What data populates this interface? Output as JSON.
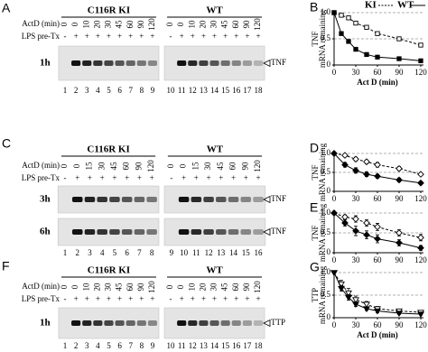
{
  "gels": [
    {
      "panel": "A",
      "groups": [
        "C116R KI",
        "WT"
      ],
      "row_labels": {
        "actd": "ActD (min)",
        "lps": "LPS pre-Tx"
      },
      "actd": [
        "0",
        "0",
        "10",
        "20",
        "30",
        "45",
        "60",
        "90",
        "120",
        "0",
        "0",
        "10",
        "20",
        "30",
        "45",
        "60",
        "90",
        "120"
      ],
      "lps": [
        "-",
        "+",
        "+",
        "+",
        "+",
        "+",
        "+",
        "+",
        "+",
        "-",
        "+",
        "+",
        "+",
        "+",
        "+",
        "+",
        "+",
        "+"
      ],
      "lanes": [
        "1",
        "2",
        "3",
        "4",
        "5",
        "6",
        "7",
        "8",
        "9",
        "10",
        "11",
        "12",
        "13",
        "14",
        "15",
        "16",
        "17",
        "18"
      ],
      "rows": [
        {
          "time": "1h",
          "band": "TNF"
        }
      ]
    },
    {
      "panel": "C",
      "groups": [
        "C116R KI",
        "WT"
      ],
      "row_labels": {
        "actd": "ActD (min)",
        "lps": "LPS pre-Tx"
      },
      "actd": [
        "0",
        "0",
        "15",
        "30",
        "45",
        "60",
        "90",
        "120",
        "0",
        "0",
        "15",
        "30",
        "45",
        "60",
        "90",
        "120"
      ],
      "lps": [
        "-",
        "+",
        "+",
        "+",
        "+",
        "+",
        "+",
        "+",
        "-",
        "+",
        "+",
        "+",
        "+",
        "+",
        "+",
        "+"
      ],
      "lanes": [
        "1",
        "2",
        "3",
        "4",
        "5",
        "6",
        "7",
        "8",
        "9",
        "10",
        "11",
        "12",
        "13",
        "14",
        "15",
        "16"
      ],
      "rows": [
        {
          "time": "3h",
          "band": "TNF"
        },
        {
          "time": "6h",
          "band": "TNF"
        }
      ]
    },
    {
      "panel": "F",
      "groups": [
        "C116R KI",
        "WT"
      ],
      "row_labels": {
        "actd": "ActD (min)",
        "lps": "LPS pre-Tx"
      },
      "actd": [
        "0",
        "0",
        "10",
        "20",
        "30",
        "45",
        "60",
        "90",
        "120",
        "0",
        "0",
        "10",
        "20",
        "30",
        "45",
        "60",
        "90",
        "120"
      ],
      "lps": [
        "-",
        "+",
        "+",
        "+",
        "+",
        "+",
        "+",
        "+",
        "+",
        "-",
        "+",
        "+",
        "+",
        "+",
        "+",
        "+",
        "+",
        "+"
      ],
      "lanes": [
        "1",
        "2",
        "3",
        "4",
        "5",
        "6",
        "7",
        "8",
        "9",
        "10",
        "11",
        "12",
        "13",
        "14",
        "15",
        "16",
        "17",
        "18"
      ],
      "rows": [
        {
          "time": "1h",
          "band": "TTP"
        }
      ]
    }
  ],
  "chart_data": [
    {
      "type": "line",
      "panel": "B",
      "ylabel": [
        "TNF",
        "mRNA remaining"
      ],
      "xlabel": "Act D (min)",
      "x": [
        0,
        10,
        20,
        30,
        45,
        60,
        90,
        120
      ],
      "xlim": [
        0,
        120
      ],
      "xticks": [
        0,
        30,
        60,
        90,
        120
      ],
      "ylim": [
        0,
        1
      ],
      "yticks": [
        0,
        0.5,
        {
          "value": 1,
          "label": "1.0"
        }
      ],
      "grid": true,
      "legend": "top",
      "series": [
        {
          "name": "KI",
          "color": "#000000",
          "dashed": true,
          "open": true,
          "marker": "square",
          "values": [
            1.0,
            0.95,
            0.9,
            0.8,
            0.72,
            0.6,
            0.5,
            0.38
          ]
        },
        {
          "name": "WT",
          "color": "#000000",
          "dashed": false,
          "open": false,
          "marker": "square",
          "values": [
            1.0,
            0.6,
            0.45,
            0.3,
            0.2,
            0.15,
            0.12,
            0.08
          ]
        }
      ]
    },
    {
      "type": "line",
      "panel": "D",
      "ylabel": [
        "TNF",
        "mRNA remaining"
      ],
      "x": [
        0,
        15,
        30,
        45,
        60,
        90,
        120
      ],
      "xlim": [
        0,
        120
      ],
      "xticks": [
        0,
        30,
        60,
        90,
        120
      ],
      "ylim": [
        0,
        1
      ],
      "yticks": [
        0,
        0.5,
        {
          "value": 1,
          "label": "1.0"
        }
      ],
      "grid": true,
      "series": [
        {
          "color": "#000000",
          "dashed": true,
          "open": true,
          "marker": "diamond",
          "values": [
            1.0,
            0.95,
            0.85,
            0.78,
            0.7,
            0.6,
            0.45
          ],
          "errors": [
            0,
            0.04,
            0.05,
            0.05,
            0.06,
            0.05,
            0.03
          ]
        },
        {
          "color": "#000000",
          "dashed": false,
          "open": false,
          "marker": "diamond",
          "values": [
            1.0,
            0.7,
            0.55,
            0.45,
            0.4,
            0.3,
            0.22
          ],
          "errors": [
            0,
            0.06,
            0.07,
            0.06,
            0.05,
            0.05,
            0.04
          ]
        }
      ]
    },
    {
      "type": "line",
      "panel": "E",
      "ylabel": [
        "TNF",
        "mRNA remaining"
      ],
      "x": [
        0,
        15,
        30,
        45,
        60,
        90,
        120
      ],
      "xlim": [
        0,
        120
      ],
      "xticks": [
        0,
        30,
        60,
        90,
        120
      ],
      "ylim": [
        0,
        1
      ],
      "yticks": [
        0,
        0.5,
        {
          "value": 1,
          "label": "1.0"
        }
      ],
      "grid": true,
      "series": [
        {
          "color": "#000000",
          "dashed": true,
          "open": true,
          "marker": "diamond",
          "values": [
            1.0,
            0.9,
            0.85,
            0.75,
            0.65,
            0.5,
            0.38
          ],
          "errors": [
            0,
            0.05,
            0.08,
            0.08,
            0.09,
            0.08,
            0.08
          ]
        },
        {
          "color": "#000000",
          "dashed": false,
          "open": false,
          "marker": "diamond",
          "values": [
            1.0,
            0.75,
            0.55,
            0.45,
            0.35,
            0.25,
            0.12
          ],
          "errors": [
            0,
            0.08,
            0.12,
            0.1,
            0.1,
            0.08,
            0.06
          ]
        }
      ]
    },
    {
      "type": "line",
      "panel": "G",
      "ylabel": [
        "TTP",
        "mRNA remaining"
      ],
      "xlabel": "Act D (min)",
      "x": [
        0,
        10,
        20,
        30,
        45,
        60,
        90,
        120
      ],
      "xlim": [
        0,
        120
      ],
      "xticks": [
        0,
        30,
        60,
        90,
        120
      ],
      "ylim": [
        0,
        1
      ],
      "yticks": [
        0,
        0.5,
        {
          "value": 1,
          "label": "1.0"
        }
      ],
      "grid": true,
      "series": [
        {
          "color": "#000000",
          "dashed": true,
          "open": true,
          "marker": "triangle",
          "values": [
            1.0,
            0.75,
            0.55,
            0.4,
            0.3,
            0.2,
            0.15,
            0.12
          ],
          "errors": [
            0,
            0.08,
            0.1,
            0.08,
            0.06,
            0.05,
            0.04,
            0.03
          ]
        },
        {
          "color": "#000000",
          "dashed": false,
          "open": false,
          "marker": "triangle",
          "values": [
            1.0,
            0.65,
            0.45,
            0.3,
            0.2,
            0.15,
            0.1,
            0.08
          ],
          "errors": [
            0,
            0.06,
            0.06,
            0.05,
            0.04,
            0.04,
            0.03,
            0.02
          ]
        }
      ]
    }
  ]
}
